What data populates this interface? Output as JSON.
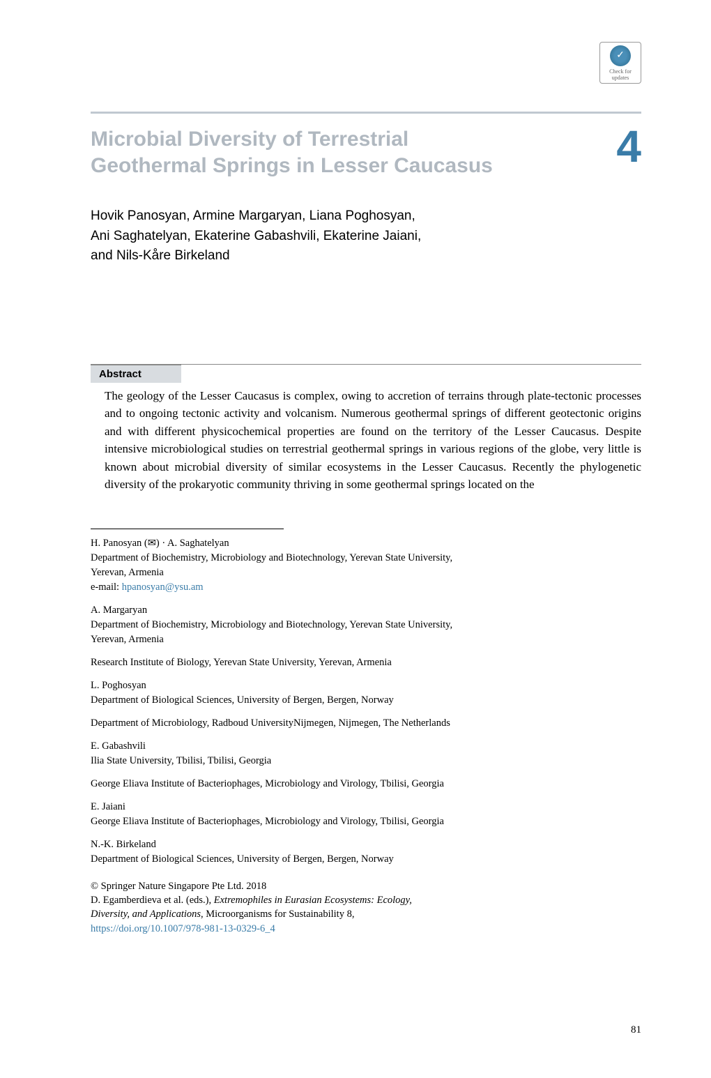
{
  "badge": {
    "check_label": "Check for",
    "updates_label": "updates"
  },
  "chapter": {
    "title_line1": "Microbial Diversity of Terrestrial",
    "title_line2": "Geothermal Springs in Lesser Caucasus",
    "number": "4"
  },
  "authors": {
    "line1": "Hovik Panosyan, Armine Margaryan, Liana Poghosyan,",
    "line2": "Ani Saghatelyan, Ekaterine Gabashvili, Ekaterine Jaiani,",
    "line3": "and Nils-Kåre Birkeland"
  },
  "abstract": {
    "heading": "Abstract",
    "text": "The geology of the Lesser Caucasus is complex, owing to accretion of terrains through plate-tectonic processes and to ongoing tectonic activity and volcanism. Numerous geothermal springs of different geotectonic origins and with different physicochemical properties are found on the territory of the Lesser Caucasus. Despite intensive microbiological studies on terrestrial geothermal springs in various regions of the globe, very little is known about microbial diversity of similar ecosystems in the Lesser Caucasus. Recently the phylogenetic diversity of the prokaryotic community thriving in some geothermal springs located on the"
  },
  "affiliations": [
    {
      "author": "H. Panosyan (✉) · A. Saghatelyan",
      "lines": [
        "Department of Biochemistry, Microbiology and Biotechnology, Yerevan State University,",
        "Yerevan, Armenia"
      ],
      "email_label": "e-mail: ",
      "email": "hpanosyan@ysu.am"
    },
    {
      "author": "A. Margaryan",
      "lines": [
        "Department of Biochemistry, Microbiology and Biotechnology, Yerevan State University,",
        "Yerevan, Armenia"
      ]
    },
    {
      "author": "",
      "lines": [
        "Research Institute of Biology, Yerevan State University, Yerevan, Armenia"
      ]
    },
    {
      "author": "L. Poghosyan",
      "lines": [
        "Department of Biological Sciences, University of Bergen, Bergen, Norway"
      ]
    },
    {
      "author": "",
      "lines": [
        "Department of Microbiology, Radboud UniversityNijmegen, Nijmegen, The Netherlands"
      ]
    },
    {
      "author": "E. Gabashvili",
      "lines": [
        "Ilia State University, Tbilisi, Tbilisi, Georgia"
      ]
    },
    {
      "author": "",
      "lines": [
        "George Eliava Institute of Bacteriophages, Microbiology and Virology, Tbilisi, Georgia"
      ]
    },
    {
      "author": "E. Jaiani",
      "lines": [
        "George Eliava Institute of Bacteriophages, Microbiology and Virology, Tbilisi, Georgia"
      ]
    },
    {
      "author": "N.-K. Birkeland",
      "lines": [
        "Department of Biological Sciences, University of Bergen, Bergen, Norway"
      ]
    }
  ],
  "footer": {
    "copyright": "© Springer Nature Singapore Pte Ltd. 2018",
    "editors": "D. Egamberdieva et al. (eds.), ",
    "book_title": "Extremophiles in Eurasian Ecosystems: Ecology,",
    "book_title2": "Diversity, and Applications",
    "series": ", Microorganisms for Sustainability 8,",
    "doi": "https://doi.org/10.1007/978-981-13-0329-6_4"
  },
  "page_number": "81",
  "colors": {
    "title_gray": "#b0b8c0",
    "chapter_blue": "#3a7ca8",
    "link_blue": "#3a7ca8",
    "bar_gray": "#c0c8d0",
    "abstract_bg": "#d8dce0"
  }
}
